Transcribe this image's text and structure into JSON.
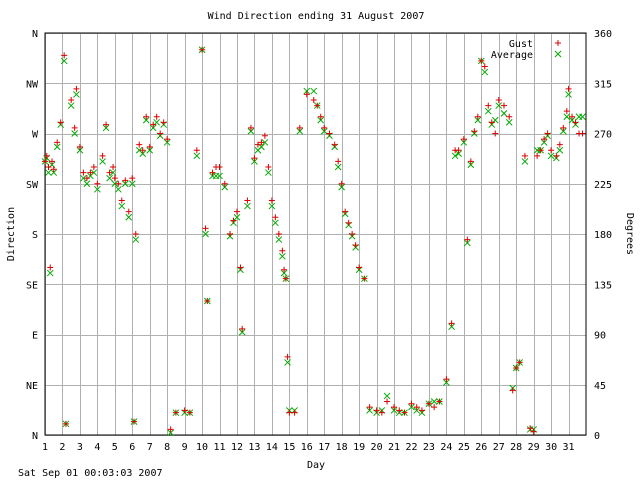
{
  "chart_data": {
    "type": "scatter",
    "title": "Wind Direction ending 31 August 2007",
    "xlabel": "Day",
    "ylabel_left": "Direction",
    "ylabel_right": "Degrees",
    "footer": "Sat Sep 01 00:03:03 2007",
    "xlim": [
      1,
      32
    ],
    "ylim": [
      0,
      360
    ],
    "x_ticks": [
      1,
      2,
      3,
      4,
      5,
      6,
      7,
      8,
      9,
      10,
      11,
      12,
      13,
      14,
      15,
      16,
      17,
      18,
      19,
      20,
      21,
      22,
      23,
      24,
      25,
      26,
      27,
      28,
      29,
      30,
      31
    ],
    "y_ticks_left": [
      {
        "value": 0,
        "label": "N"
      },
      {
        "value": 45,
        "label": "NE"
      },
      {
        "value": 90,
        "label": "E"
      },
      {
        "value": 135,
        "label": "SE"
      },
      {
        "value": 180,
        "label": "S"
      },
      {
        "value": 225,
        "label": "SW"
      },
      {
        "value": 270,
        "label": "W"
      },
      {
        "value": 315,
        "label": "NW"
      },
      {
        "value": 360,
        "label": "N"
      }
    ],
    "y_ticks_right": [
      0,
      45,
      90,
      135,
      180,
      225,
      270,
      315,
      360
    ],
    "grid": true,
    "legend_position": "top-right",
    "colors": {
      "gust": "#dd0000",
      "average": "#00aa00",
      "grid": "#b0b0b0",
      "axis": "#000000"
    },
    "series": [
      {
        "name": "Gust",
        "marker": "+",
        "points": [
          [
            1.0,
            245
          ],
          [
            1.1,
            250
          ],
          [
            1.2,
            240
          ],
          [
            1.3,
            150
          ],
          [
            1.4,
            245
          ],
          [
            1.5,
            238
          ],
          [
            1.7,
            262
          ],
          [
            1.9,
            280
          ],
          [
            2.1,
            340
          ],
          [
            2.2,
            10
          ],
          [
            2.5,
            300
          ],
          [
            2.7,
            275
          ],
          [
            2.8,
            310
          ],
          [
            3.0,
            258
          ],
          [
            3.2,
            235
          ],
          [
            3.4,
            230
          ],
          [
            3.6,
            235
          ],
          [
            3.8,
            240
          ],
          [
            4.0,
            225
          ],
          [
            4.3,
            250
          ],
          [
            4.5,
            278
          ],
          [
            4.7,
            235
          ],
          [
            4.9,
            240
          ],
          [
            5.0,
            230
          ],
          [
            5.2,
            225
          ],
          [
            5.4,
            210
          ],
          [
            5.6,
            228
          ],
          [
            5.8,
            200
          ],
          [
            6.0,
            230
          ],
          [
            6.1,
            12
          ],
          [
            6.2,
            180
          ],
          [
            6.4,
            260
          ],
          [
            6.6,
            255
          ],
          [
            6.8,
            285
          ],
          [
            7.0,
            258
          ],
          [
            7.2,
            278
          ],
          [
            7.4,
            285
          ],
          [
            7.6,
            270
          ],
          [
            7.8,
            280
          ],
          [
            8.0,
            265
          ],
          [
            8.2,
            5
          ],
          [
            8.5,
            20
          ],
          [
            9.0,
            22
          ],
          [
            9.3,
            20
          ],
          [
            9.7,
            255
          ],
          [
            10.0,
            345
          ],
          [
            10.2,
            185
          ],
          [
            10.3,
            120
          ],
          [
            10.6,
            235
          ],
          [
            10.8,
            240
          ],
          [
            11.0,
            240
          ],
          [
            11.3,
            225
          ],
          [
            11.6,
            180
          ],
          [
            11.8,
            192
          ],
          [
            12.0,
            200
          ],
          [
            12.2,
            150
          ],
          [
            12.3,
            95
          ],
          [
            12.6,
            210
          ],
          [
            12.8,
            275
          ],
          [
            13.0,
            248
          ],
          [
            13.2,
            260
          ],
          [
            13.4,
            262
          ],
          [
            13.6,
            268
          ],
          [
            13.8,
            240
          ],
          [
            14.0,
            210
          ],
          [
            14.2,
            195
          ],
          [
            14.4,
            180
          ],
          [
            14.6,
            165
          ],
          [
            14.7,
            148
          ],
          [
            14.8,
            140
          ],
          [
            14.9,
            70
          ],
          [
            15.0,
            20
          ],
          [
            15.3,
            20
          ],
          [
            15.6,
            275
          ],
          [
            16.0,
            305
          ],
          [
            16.4,
            300
          ],
          [
            16.6,
            295
          ],
          [
            16.8,
            285
          ],
          [
            17.0,
            275
          ],
          [
            17.3,
            270
          ],
          [
            17.6,
            260
          ],
          [
            17.8,
            245
          ],
          [
            18.0,
            225
          ],
          [
            18.2,
            200
          ],
          [
            18.4,
            190
          ],
          [
            18.6,
            180
          ],
          [
            18.8,
            170
          ],
          [
            19.0,
            150
          ],
          [
            19.3,
            140
          ],
          [
            19.6,
            25
          ],
          [
            20.0,
            22
          ],
          [
            20.3,
            20
          ],
          [
            20.6,
            30
          ],
          [
            21.0,
            25
          ],
          [
            21.3,
            22
          ],
          [
            21.6,
            20
          ],
          [
            22.0,
            28
          ],
          [
            22.3,
            25
          ],
          [
            22.6,
            22
          ],
          [
            23.0,
            28
          ],
          [
            23.3,
            25
          ],
          [
            23.6,
            30
          ],
          [
            24.0,
            50
          ],
          [
            24.3,
            100
          ],
          [
            24.5,
            255
          ],
          [
            24.7,
            255
          ],
          [
            25.0,
            265
          ],
          [
            25.2,
            175
          ],
          [
            25.4,
            245
          ],
          [
            25.6,
            272
          ],
          [
            25.8,
            285
          ],
          [
            26.0,
            335
          ],
          [
            26.2,
            330
          ],
          [
            26.4,
            295
          ],
          [
            26.6,
            280
          ],
          [
            26.8,
            270
          ],
          [
            27.0,
            300
          ],
          [
            27.3,
            295
          ],
          [
            27.6,
            285
          ],
          [
            27.8,
            40
          ],
          [
            28.0,
            60
          ],
          [
            28.2,
            65
          ],
          [
            28.5,
            250
          ],
          [
            28.8,
            6
          ],
          [
            29.0,
            3
          ],
          [
            29.2,
            250
          ],
          [
            29.4,
            255
          ],
          [
            29.6,
            265
          ],
          [
            29.8,
            270
          ],
          [
            30.0,
            255
          ],
          [
            30.3,
            250
          ],
          [
            30.5,
            260
          ],
          [
            30.7,
            275
          ],
          [
            30.9,
            290
          ],
          [
            31.0,
            310
          ],
          [
            31.2,
            285
          ],
          [
            31.4,
            280
          ],
          [
            31.6,
            270
          ],
          [
            31.8,
            270
          ]
        ]
      },
      {
        "name": "Average",
        "marker": "x",
        "points": [
          [
            1.0,
            245
          ],
          [
            1.1,
            248
          ],
          [
            1.2,
            235
          ],
          [
            1.3,
            145
          ],
          [
            1.4,
            242
          ],
          [
            1.5,
            235
          ],
          [
            1.7,
            258
          ],
          [
            1.9,
            278
          ],
          [
            2.1,
            335
          ],
          [
            2.2,
            10
          ],
          [
            2.5,
            295
          ],
          [
            2.7,
            270
          ],
          [
            2.8,
            305
          ],
          [
            3.0,
            255
          ],
          [
            3.2,
            230
          ],
          [
            3.4,
            225
          ],
          [
            3.6,
            232
          ],
          [
            3.8,
            235
          ],
          [
            4.0,
            220
          ],
          [
            4.3,
            245
          ],
          [
            4.5,
            275
          ],
          [
            4.7,
            230
          ],
          [
            4.9,
            235
          ],
          [
            5.0,
            225
          ],
          [
            5.2,
            220
          ],
          [
            5.4,
            205
          ],
          [
            5.6,
            225
          ],
          [
            5.8,
            195
          ],
          [
            6.0,
            225
          ],
          [
            6.1,
            12
          ],
          [
            6.2,
            175
          ],
          [
            6.4,
            255
          ],
          [
            6.6,
            252
          ],
          [
            6.8,
            282
          ],
          [
            7.0,
            255
          ],
          [
            7.2,
            275
          ],
          [
            7.4,
            280
          ],
          [
            7.6,
            268
          ],
          [
            7.8,
            278
          ],
          [
            8.0,
            262
          ],
          [
            8.2,
            2
          ],
          [
            8.5,
            20
          ],
          [
            9.0,
            20
          ],
          [
            9.3,
            20
          ],
          [
            9.7,
            250
          ],
          [
            10.0,
            345
          ],
          [
            10.2,
            180
          ],
          [
            10.3,
            120
          ],
          [
            10.6,
            232
          ],
          [
            10.8,
            232
          ],
          [
            11.0,
            232
          ],
          [
            11.3,
            222
          ],
          [
            11.6,
            178
          ],
          [
            11.8,
            190
          ],
          [
            12.0,
            195
          ],
          [
            12.2,
            148
          ],
          [
            12.3,
            92
          ],
          [
            12.6,
            205
          ],
          [
            12.8,
            272
          ],
          [
            13.0,
            245
          ],
          [
            13.2,
            255
          ],
          [
            13.4,
            258
          ],
          [
            13.6,
            262
          ],
          [
            13.8,
            235
          ],
          [
            14.0,
            205
          ],
          [
            14.2,
            190
          ],
          [
            14.4,
            175
          ],
          [
            14.6,
            160
          ],
          [
            14.7,
            145
          ],
          [
            14.8,
            140
          ],
          [
            14.9,
            65
          ],
          [
            15.0,
            22
          ],
          [
            15.3,
            22
          ],
          [
            15.6,
            272
          ],
          [
            16.0,
            308
          ],
          [
            16.4,
            308
          ],
          [
            16.6,
            295
          ],
          [
            16.8,
            282
          ],
          [
            17.0,
            272
          ],
          [
            17.3,
            268
          ],
          [
            17.6,
            258
          ],
          [
            17.8,
            240
          ],
          [
            18.0,
            222
          ],
          [
            18.2,
            198
          ],
          [
            18.4,
            188
          ],
          [
            18.6,
            178
          ],
          [
            18.8,
            168
          ],
          [
            19.0,
            148
          ],
          [
            19.3,
            140
          ],
          [
            19.6,
            22
          ],
          [
            20.0,
            20
          ],
          [
            20.3,
            22
          ],
          [
            20.6,
            35
          ],
          [
            21.0,
            22
          ],
          [
            21.3,
            20
          ],
          [
            21.6,
            20
          ],
          [
            22.0,
            25
          ],
          [
            22.3,
            22
          ],
          [
            22.6,
            20
          ],
          [
            23.0,
            28
          ],
          [
            23.3,
            30
          ],
          [
            23.6,
            30
          ],
          [
            24.0,
            47
          ],
          [
            24.3,
            97
          ],
          [
            24.5,
            250
          ],
          [
            24.7,
            252
          ],
          [
            25.0,
            262
          ],
          [
            25.2,
            172
          ],
          [
            25.4,
            242
          ],
          [
            25.6,
            270
          ],
          [
            25.8,
            282
          ],
          [
            26.0,
            335
          ],
          [
            26.2,
            325
          ],
          [
            26.4,
            290
          ],
          [
            26.6,
            278
          ],
          [
            26.8,
            282
          ],
          [
            27.0,
            295
          ],
          [
            27.3,
            288
          ],
          [
            27.6,
            280
          ],
          [
            27.8,
            42
          ],
          [
            28.0,
            60
          ],
          [
            28.2,
            65
          ],
          [
            28.5,
            245
          ],
          [
            28.8,
            5
          ],
          [
            29.0,
            5
          ],
          [
            29.2,
            255
          ],
          [
            29.4,
            255
          ],
          [
            29.6,
            262
          ],
          [
            29.8,
            268
          ],
          [
            30.0,
            250
          ],
          [
            30.3,
            248
          ],
          [
            30.5,
            255
          ],
          [
            30.7,
            272
          ],
          [
            30.9,
            285
          ],
          [
            31.0,
            305
          ],
          [
            31.2,
            282
          ],
          [
            31.4,
            278
          ],
          [
            31.6,
            285
          ],
          [
            31.8,
            285
          ]
        ]
      }
    ]
  }
}
